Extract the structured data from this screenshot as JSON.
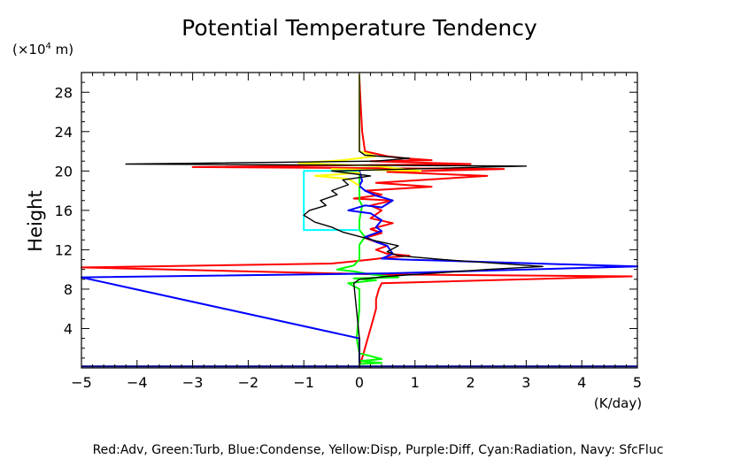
{
  "chart_data": {
    "type": "line",
    "title": "Potential Temperature Tendency",
    "xlabel": "(K/day)",
    "ylabel": "Height",
    "yunit_prefix": "(×10",
    "yunit_exp": "4",
    "yunit_suffix": " m)",
    "xlim": [
      -5,
      5
    ],
    "ylim": [
      0,
      30
    ],
    "xticks": [
      -5,
      -4,
      -3,
      -2,
      -1,
      0,
      1,
      2,
      3,
      4,
      5
    ],
    "yticks": [
      4,
      8,
      12,
      16,
      20,
      24,
      28
    ],
    "legend_text": "Red:Adv, Green:Turb, Blue:Condense, Yellow:Disp, Purple:Diff, Cyan:Radiation, Navy: SfcFluc",
    "grid": false,
    "series": [
      {
        "color": "#ff0000",
        "points": [
          [
            0,
            0.3
          ],
          [
            0.05,
            1
          ],
          [
            0.1,
            2
          ],
          [
            0.15,
            3
          ],
          [
            0.2,
            4
          ],
          [
            0.25,
            5
          ],
          [
            0.3,
            6
          ],
          [
            0.3,
            7
          ],
          [
            0.35,
            8
          ],
          [
            0.4,
            8.6
          ],
          [
            4.9,
            9.3
          ],
          [
            0.3,
            9.5
          ],
          [
            -5,
            10.2
          ],
          [
            -0.5,
            10.6
          ],
          [
            0.2,
            11
          ],
          [
            0.5,
            11.2
          ],
          [
            0.9,
            11.4
          ],
          [
            0.5,
            11.6
          ],
          [
            0.3,
            12
          ],
          [
            0.5,
            12.4
          ],
          [
            0.3,
            12.8
          ],
          [
            0.1,
            13.2
          ],
          [
            0.4,
            13.7
          ],
          [
            0.2,
            14.1
          ],
          [
            0.6,
            14.7
          ],
          [
            0.2,
            15.2
          ],
          [
            0.4,
            16
          ],
          [
            0.2,
            16.5
          ],
          [
            0.6,
            17
          ],
          [
            -0.1,
            17.2
          ],
          [
            0.4,
            17.6
          ],
          [
            0.1,
            18
          ],
          [
            1.3,
            18.4
          ],
          [
            0.3,
            18.8
          ],
          [
            2.3,
            19.5
          ],
          [
            0.5,
            19.9
          ],
          [
            2.6,
            20.2
          ],
          [
            -3.0,
            20.4
          ],
          [
            2.0,
            20.7
          ],
          [
            0.2,
            21
          ],
          [
            1.3,
            21.1
          ],
          [
            0.8,
            21.3
          ],
          [
            0.5,
            21.5
          ],
          [
            0.1,
            22
          ],
          [
            0.05,
            24
          ],
          [
            0.02,
            27
          ],
          [
            0,
            29.5
          ]
        ]
      },
      {
        "color": "#00ff00",
        "points": [
          [
            0,
            0.4
          ],
          [
            0.4,
            0.5
          ],
          [
            0.0,
            0.7
          ],
          [
            0.4,
            0.9
          ],
          [
            0.0,
            1.5
          ],
          [
            -0.05,
            3
          ],
          [
            0,
            6
          ],
          [
            0,
            8
          ],
          [
            -0.2,
            8.6
          ],
          [
            0.3,
            8.9
          ],
          [
            -0.1,
            9.1
          ],
          [
            0.7,
            9.2
          ],
          [
            0.2,
            9.5
          ],
          [
            -0.1,
            9.8
          ],
          [
            -0.4,
            10.0
          ],
          [
            -0.1,
            10.4
          ],
          [
            0,
            11
          ],
          [
            0,
            12.5
          ],
          [
            0.1,
            13.3
          ],
          [
            0,
            14
          ],
          [
            0,
            15
          ],
          [
            0.05,
            16.5
          ],
          [
            0,
            17
          ],
          [
            0,
            20
          ]
        ]
      },
      {
        "color": "#0000ff",
        "points": [
          [
            0,
            0.5
          ],
          [
            0,
            3
          ],
          [
            -5,
            9.2
          ],
          [
            0.5,
            9.6
          ],
          [
            5,
            10.3
          ],
          [
            0.8,
            11.0
          ],
          [
            0.4,
            11.1
          ],
          [
            0.6,
            11.6
          ],
          [
            0.5,
            12.4
          ],
          [
            0.3,
            12.8
          ],
          [
            0.1,
            13.3
          ],
          [
            0.4,
            13.9
          ],
          [
            0.3,
            14.3
          ],
          [
            0.4,
            15.0
          ],
          [
            0.2,
            15.7
          ],
          [
            -0.2,
            16.0
          ],
          [
            0.1,
            16.5
          ],
          [
            0.4,
            16.3
          ],
          [
            0.6,
            17.0
          ],
          [
            0.3,
            17.5
          ],
          [
            0.1,
            18.0
          ],
          [
            0,
            18.5
          ],
          [
            0.05,
            19.0
          ],
          [
            0,
            20
          ]
        ]
      },
      {
        "color": "#ffff00",
        "points": [
          [
            0,
            18.5
          ],
          [
            -0.2,
            19.2
          ],
          [
            -0.8,
            19.5
          ],
          [
            0,
            19.8
          ],
          [
            -0.5,
            20.2
          ],
          [
            1.1,
            20.0
          ],
          [
            0.3,
            20.5
          ],
          [
            -1.1,
            20.8
          ],
          [
            -0.3,
            21.1
          ],
          [
            0.3,
            21.5
          ],
          [
            0,
            22
          ],
          [
            0,
            29.8
          ]
        ]
      },
      {
        "color": "#00ffff",
        "points": [
          [
            0,
            14
          ],
          [
            -1,
            14
          ],
          [
            -1,
            20
          ],
          [
            0,
            20
          ]
        ]
      },
      {
        "color": "#000080",
        "points": [
          [
            -5,
            0.15
          ],
          [
            5,
            0.15
          ]
        ]
      },
      {
        "color": "#000000",
        "points": [
          [
            0,
            0
          ],
          [
            0,
            1
          ],
          [
            0,
            3
          ],
          [
            -0.1,
            8.6
          ],
          [
            0,
            9.0
          ],
          [
            0.5,
            9.3
          ],
          [
            2.3,
            10.0
          ],
          [
            3.3,
            10.3
          ],
          [
            1.5,
            11.0
          ],
          [
            0.7,
            11.4
          ],
          [
            0.5,
            11.8
          ],
          [
            0.7,
            12.4
          ],
          [
            0.3,
            12.9
          ],
          [
            -0.3,
            13.8
          ],
          [
            -0.5,
            14.3
          ],
          [
            -0.8,
            14.8
          ],
          [
            -1.0,
            15.5
          ],
          [
            -0.9,
            16.0
          ],
          [
            -0.6,
            16.5
          ],
          [
            -0.7,
            17.0
          ],
          [
            -0.4,
            17.6
          ],
          [
            -0.5,
            18.0
          ],
          [
            -0.2,
            18.6
          ],
          [
            -0.3,
            19.1
          ],
          [
            0.2,
            19.5
          ],
          [
            -0.5,
            20.0
          ],
          [
            3.0,
            20.5
          ],
          [
            -4.2,
            20.7
          ],
          [
            0.3,
            21.0
          ],
          [
            0.9,
            21.3
          ],
          [
            0.1,
            21.6
          ],
          [
            0,
            22
          ],
          [
            0,
            29.8
          ]
        ]
      }
    ]
  }
}
